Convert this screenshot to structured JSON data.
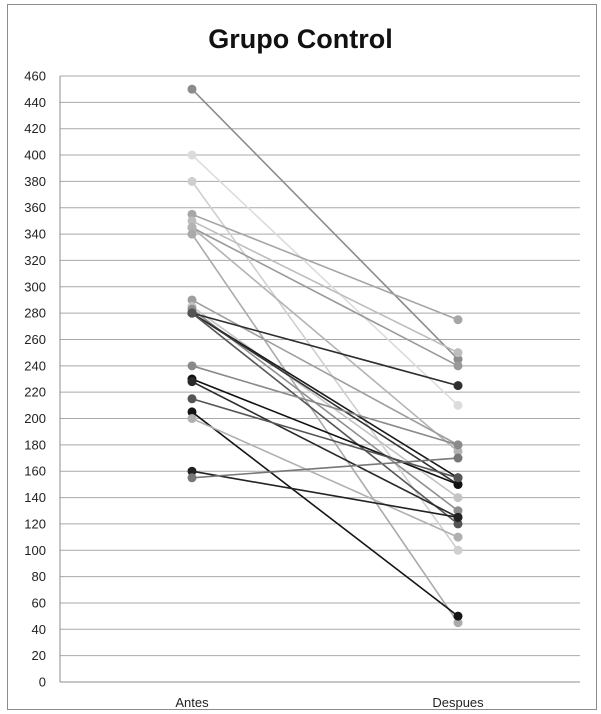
{
  "chart_data": {
    "type": "line",
    "title": "Grupo Control",
    "xlabel": "",
    "ylabel": "",
    "categories": [
      "Antes",
      "Despues"
    ],
    "ylim": [
      0,
      460
    ],
    "ytick_step": 20,
    "grid": true,
    "legend": "none",
    "series": [
      {
        "values": [
          450,
          245
        ],
        "color": "#8c8c8c"
      },
      {
        "values": [
          400,
          210
        ],
        "color": "#dcdcdc"
      },
      {
        "values": [
          380,
          100
        ],
        "color": "#cfcfcf"
      },
      {
        "values": [
          355,
          275
        ],
        "color": "#a6a6a6"
      },
      {
        "values": [
          350,
          250
        ],
        "color": "#bdbdbd"
      },
      {
        "values": [
          345,
          240
        ],
        "color": "#999999"
      },
      {
        "values": [
          345,
          175
        ],
        "color": "#b3b3b3"
      },
      {
        "values": [
          340,
          45
        ],
        "color": "#aaaaaa"
      },
      {
        "values": [
          290,
          180
        ],
        "color": "#9e9e9e"
      },
      {
        "values": [
          285,
          140
        ],
        "color": "#c4c4c4"
      },
      {
        "values": [
          283,
          130
        ],
        "color": "#8f8f8f"
      },
      {
        "values": [
          280,
          225
        ],
        "color": "#2e2e2e"
      },
      {
        "values": [
          280,
          155
        ],
        "color": "#1a1a1a"
      },
      {
        "values": [
          280,
          150
        ],
        "color": "#333333"
      },
      {
        "values": [
          280,
          120
        ],
        "color": "#555555"
      },
      {
        "values": [
          240,
          180
        ],
        "color": "#8a8a8a"
      },
      {
        "values": [
          230,
          150
        ],
        "color": "#111111"
      },
      {
        "values": [
          228,
          125
        ],
        "color": "#2a2a2a"
      },
      {
        "values": [
          215,
          155
        ],
        "color": "#555555"
      },
      {
        "values": [
          205,
          50
        ],
        "color": "#151515"
      },
      {
        "values": [
          200,
          110
        ],
        "color": "#b0b0b0"
      },
      {
        "values": [
          160,
          125
        ],
        "color": "#222222"
      },
      {
        "values": [
          155,
          170
        ],
        "color": "#777777"
      }
    ]
  }
}
